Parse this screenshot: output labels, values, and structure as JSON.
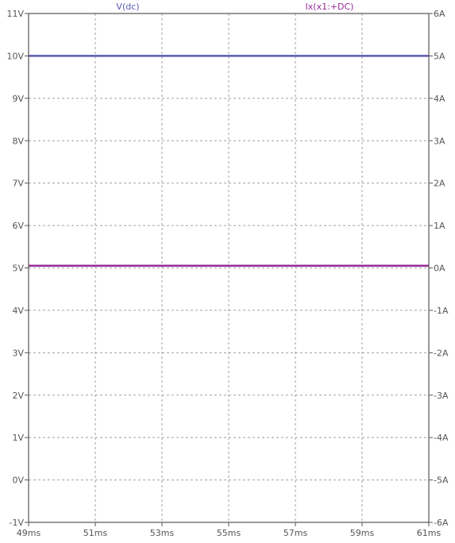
{
  "chart_data": {
    "type": "line",
    "x_ticks": [
      "49ms",
      "51ms",
      "53ms",
      "55ms",
      "57ms",
      "59ms",
      "61ms"
    ],
    "x_range_ms": [
      49,
      61
    ],
    "left_axis": {
      "ticks": [
        "11V",
        "10V",
        "9V",
        "8V",
        "7V",
        "6V",
        "5V",
        "4V",
        "3V",
        "2V",
        "1V",
        "0V",
        "-1V"
      ],
      "range": [
        -1,
        11
      ]
    },
    "right_axis": {
      "ticks": [
        "6A",
        "5A",
        "4A",
        "3A",
        "2A",
        "1A",
        "0A",
        "-1A",
        "-2A",
        "-3A",
        "-4A",
        "-5A",
        "-6A"
      ],
      "range": [
        -6,
        6
      ]
    },
    "grid": true,
    "series": [
      {
        "name": "V(dc)",
        "axis": "left",
        "color": "#5a5ab4",
        "x": [
          49,
          61
        ],
        "y": [
          10,
          10
        ]
      },
      {
        "name": "Ix(x1:+DC)",
        "axis": "right",
        "color": "#9a2a9a",
        "x": [
          49,
          61
        ],
        "y": [
          0.05,
          0.05
        ]
      }
    ]
  }
}
